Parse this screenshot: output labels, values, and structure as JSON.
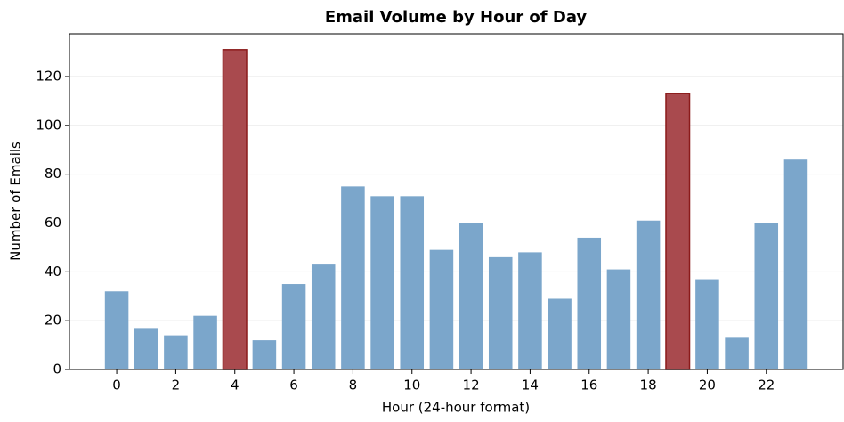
{
  "chart_data": {
    "type": "bar",
    "title": "Email Volume by Hour of Day",
    "x_label": "Hour (24-hour format)",
    "y_label": "Number of Emails",
    "x": [
      0,
      1,
      2,
      3,
      4,
      5,
      6,
      7,
      8,
      9,
      10,
      11,
      12,
      13,
      14,
      15,
      16,
      17,
      18,
      19,
      20,
      21,
      22,
      23
    ],
    "values": [
      32,
      17,
      14,
      22,
      131,
      12,
      35,
      43,
      75,
      71,
      71,
      49,
      60,
      46,
      48,
      29,
      54,
      41,
      61,
      113,
      37,
      13,
      60,
      86
    ],
    "colors": [
      "#7ba6cb",
      "#7ba6cb",
      "#7ba6cb",
      "#7ba6cb",
      "#a94a4e",
      "#7ba6cb",
      "#7ba6cb",
      "#7ba6cb",
      "#7ba6cb",
      "#7ba6cb",
      "#7ba6cb",
      "#7ba6cb",
      "#7ba6cb",
      "#7ba6cb",
      "#7ba6cb",
      "#7ba6cb",
      "#7ba6cb",
      "#7ba6cb",
      "#7ba6cb",
      "#a94a4e",
      "#7ba6cb",
      "#7ba6cb",
      "#7ba6cb",
      "#7ba6cb"
    ],
    "edge_colors": [
      "none",
      "none",
      "none",
      "none",
      "#8b1a1a",
      "none",
      "none",
      "none",
      "none",
      "none",
      "none",
      "none",
      "none",
      "none",
      "none",
      "none",
      "none",
      "none",
      "none",
      "#8b1a1a",
      "none",
      "none",
      "none",
      "none"
    ],
    "bar_width": 0.8,
    "xlim": [
      -1.6,
      24.6
    ],
    "xticks": [
      0,
      2,
      4,
      6,
      8,
      10,
      12,
      14,
      16,
      18,
      20,
      22
    ],
    "ylim": [
      0,
      137.5
    ],
    "yticks": [
      0,
      20,
      40,
      60,
      80,
      100,
      120
    ],
    "grid": true
  }
}
